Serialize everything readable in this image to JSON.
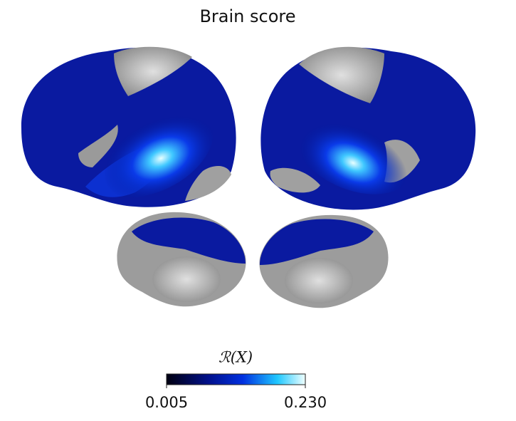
{
  "title": "Brain score",
  "colorbar": {
    "label": "ℛ(X)",
    "lim": [
      0.005,
      0.23
    ],
    "ticks": [
      {
        "value": 0.005,
        "label": "0.005"
      },
      {
        "value": 0.23,
        "label": "0.230"
      }
    ]
  }
}
